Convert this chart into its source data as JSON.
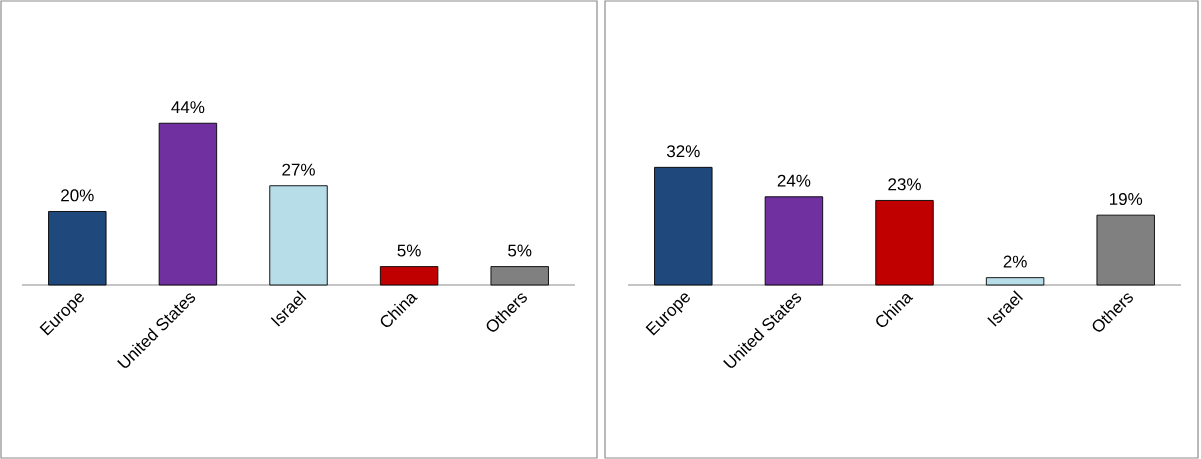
{
  "chart_data": [
    {
      "type": "bar",
      "categories": [
        "Europe",
        "United States",
        "Israel",
        "China",
        "Others"
      ],
      "values": [
        20,
        44,
        27,
        5,
        5
      ],
      "colors": [
        "#1f497d",
        "#7030a0",
        "#b7dde8",
        "#c00000",
        "#808080"
      ],
      "value_labels": [
        "20%",
        "44%",
        "27%",
        "5%",
        "5%"
      ]
    },
    {
      "type": "bar",
      "categories": [
        "Europe",
        "United States",
        "China",
        "Israel",
        "Others"
      ],
      "values": [
        32,
        24,
        23,
        2,
        19
      ],
      "colors": [
        "#1f497d",
        "#7030a0",
        "#c00000",
        "#b7dde8",
        "#808080"
      ],
      "value_labels": [
        "32%",
        "24%",
        "23%",
        "2%",
        "19%"
      ]
    }
  ]
}
